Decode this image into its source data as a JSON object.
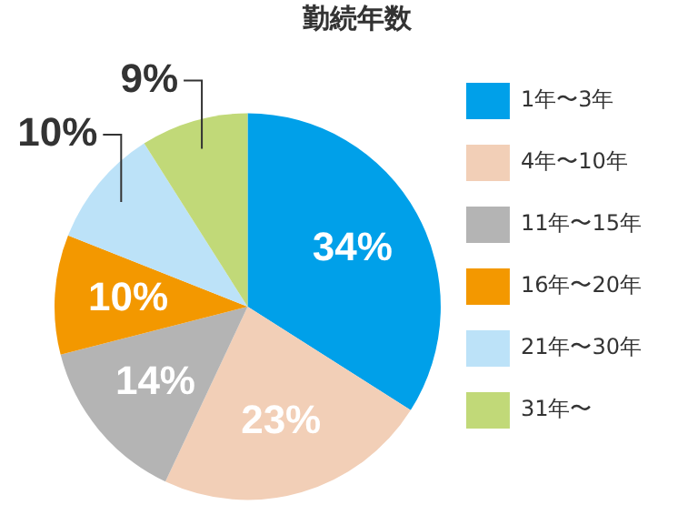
{
  "chart_data": {
    "type": "pie",
    "title": "勤続年数",
    "categories": [
      "1年〜3年",
      "4年〜10年",
      "11年〜15年",
      "16年〜20年",
      "21年〜30年",
      "31年〜"
    ],
    "values": [
      34,
      23,
      14,
      10,
      10,
      9
    ],
    "colors": [
      "#00a0e9",
      "#f2cfb7",
      "#b4b4b4",
      "#f39800",
      "#bce2f8",
      "#c1d978"
    ],
    "value_labels": [
      "34%",
      "23%",
      "14%",
      "10%",
      "10%",
      "9%"
    ],
    "legend": "right"
  }
}
